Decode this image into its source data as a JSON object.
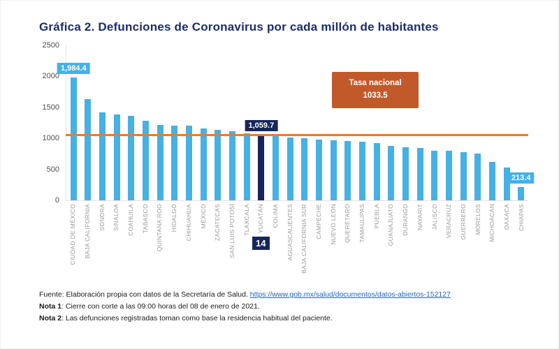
{
  "chart_data": {
    "type": "bar",
    "title": "Gráfica 2. Defunciones de Coronavirus por cada millón de habitantes",
    "categories": [
      "CIUDAD DE MÉXICO",
      "BAJA CALIFORNIA",
      "SONORA",
      "SINALOA",
      "COAHUILA",
      "TABASCO",
      "QUINTANA ROO",
      "HIDALGO",
      "CHIHUAHUA",
      "MÉXICO",
      "ZACATECAS",
      "SAN LUIS POTOSÍ",
      "TLAXCALA",
      "YUCATÁN",
      "COLIMA",
      "AGUASCALIENTES",
      "BAJA CALIFORNIA SUR",
      "CAMPECHE",
      "NUEVO LEÓN",
      "QUERÉTARO",
      "TAMAULIPAS",
      "PUEBLA",
      "GUANAJUATO",
      "DURANGO",
      "NAYARIT",
      "JALISCO",
      "VERACRUZ",
      "GUERRERO",
      "MORELOS",
      "MICHOACÁN",
      "OAXACA",
      "CHIAPAS"
    ],
    "values": [
      1984.4,
      1630,
      1420,
      1385,
      1365,
      1280,
      1215,
      1205,
      1200,
      1165,
      1135,
      1115,
      1080,
      1059.7,
      1040,
      1015,
      1000,
      985,
      965,
      955,
      945,
      925,
      875,
      855,
      840,
      805,
      795,
      780,
      755,
      620,
      530,
      213.4
    ],
    "xlabel": "",
    "ylabel": "",
    "ylim": [
      0,
      2500
    ],
    "yticks": [
      0,
      500,
      1000,
      1500,
      2000,
      2500
    ],
    "grid": false,
    "legend": "none",
    "highlight": {
      "category": "YUCATÁN",
      "rank_label": "14"
    },
    "value_labels": [
      {
        "category": "CIUDAD DE MÉXICO",
        "text": "1,984.4",
        "style": "light"
      },
      {
        "category": "YUCATÁN",
        "text": "1,059.7",
        "style": "dark"
      },
      {
        "category": "CHIAPAS",
        "text": "213.4",
        "style": "light"
      }
    ],
    "reference_line": {
      "value": 1033.5,
      "label": "Tasa nacional",
      "value_text": "1033.5"
    },
    "colors": {
      "bar": "#45b1e4",
      "highlight_bar": "#16265c",
      "reference_line": "#e87b2d",
      "callout_bg": "#c2592b",
      "title": "#1d2d69",
      "x_labels": "#9a9a9a"
    }
  },
  "footer": {
    "fuente_prefix": "Fuente: Elaboración propia con datos de la Secretaría de Salud. ",
    "fuente_link": "https://www.gob.mx/salud/documentos/datos-abiertos-152127",
    "nota1_label": "Nota 1",
    "nota1_text": ": Cierre con corte a las 09:00 horas del 08 de enero de 2021.",
    "nota2_label": "Nota 2",
    "nota2_text": ": Las defunciones registradas toman como base la residencia habitual del paciente."
  }
}
